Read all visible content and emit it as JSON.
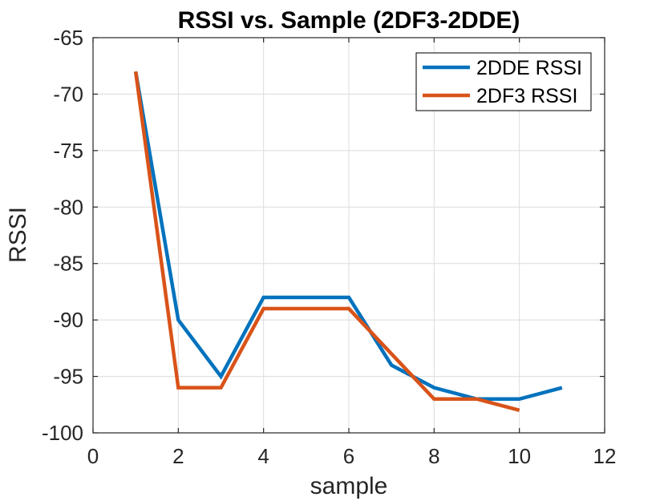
{
  "chart_data": {
    "type": "line",
    "title": "RSSI vs. Sample (2DF3-2DDE)",
    "xlabel": "sample",
    "ylabel": "RSSI",
    "xlim": [
      0,
      12
    ],
    "ylim": [
      -100,
      -65
    ],
    "xticks": [
      0,
      2,
      4,
      6,
      8,
      10,
      12
    ],
    "yticks": [
      -100,
      -95,
      -90,
      -85,
      -80,
      -75,
      -70,
      -65
    ],
    "grid": true,
    "legend_position": "top-right",
    "series": [
      {
        "name": "2DDE RSSI",
        "color": "#0072BD",
        "x": [
          1,
          2,
          3,
          4,
          5,
          6,
          7,
          8,
          9,
          10,
          11
        ],
        "y": [
          -68,
          -90,
          -95,
          -88,
          -88,
          -88,
          -94,
          -96,
          -97,
          -97,
          -96
        ]
      },
      {
        "name": "2DF3 RSSI",
        "color": "#D95319",
        "x": [
          1,
          2,
          3,
          4,
          5,
          6,
          7,
          8,
          9,
          10
        ],
        "y": [
          -68,
          -96,
          -96,
          -89,
          -89,
          -89,
          -93,
          -97,
          -97,
          -98
        ]
      }
    ]
  }
}
